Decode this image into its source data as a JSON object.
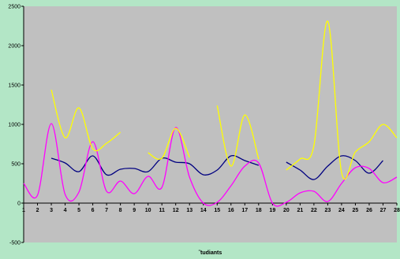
{
  "chart_data": {
    "type": "line",
    "xlabel": "˜tudiants",
    "ylabel": "",
    "categories": [
      "1",
      "2",
      "3",
      "4",
      "5",
      "6",
      "7",
      "8",
      "9",
      "10",
      "11",
      "12",
      "13",
      "14",
      "15",
      "16",
      "17",
      "18",
      "19",
      "20",
      "21",
      "22",
      "23",
      "24",
      "25",
      "26",
      "27",
      "28"
    ],
    "ylim": [
      -500,
      2500
    ],
    "yticks": [
      -500,
      0,
      500,
      1000,
      1500,
      2000,
      2500
    ],
    "grid": false,
    "legend": "none",
    "colors": {
      "page_background": "#b3e6c6",
      "plot_background": "#c0c0c0",
      "series": [
        "#000080",
        "#ff00ff",
        "#ffff00"
      ]
    },
    "series": [
      {
        "color": "#000080",
        "values": [
          null,
          null,
          570,
          510,
          400,
          600,
          360,
          430,
          440,
          400,
          570,
          520,
          500,
          360,
          420,
          600,
          540,
          480,
          null,
          520,
          420,
          300,
          470,
          600,
          540,
          380,
          540,
          null
        ]
      },
      {
        "color": "#ff00ff",
        "values": [
          250,
          100,
          1010,
          110,
          140,
          780,
          150,
          280,
          120,
          340,
          200,
          960,
          330,
          0,
          10,
          220,
          470,
          510,
          0,
          10,
          130,
          150,
          20,
          250,
          450,
          440,
          260,
          330
        ]
      },
      {
        "color": "#ffff00",
        "values": [
          null,
          null,
          1440,
          830,
          1210,
          690,
          760,
          900,
          null,
          640,
          570,
          950,
          580,
          null,
          1240,
          470,
          1120,
          560,
          null,
          420,
          560,
          730,
          2310,
          390,
          650,
          780,
          1000,
          830
        ]
      }
    ]
  }
}
